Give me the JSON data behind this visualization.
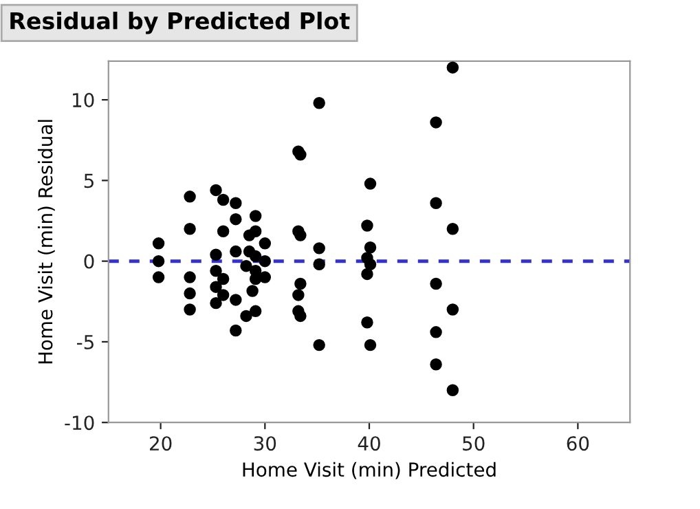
{
  "chart_data": {
    "type": "scatter",
    "title": "Residual by Predicted Plot",
    "xlabel": "Home Visit (min) Predicted",
    "ylabel": "Home Visit (min) Residual",
    "x": [
      19.8,
      19.8,
      19.8,
      22.8,
      22.8,
      22.8,
      22.8,
      22.8,
      25.3,
      26.0,
      26.0,
      25.3,
      25.3,
      26.0,
      25.3,
      26.0,
      25.3,
      27.2,
      27.2,
      27.2,
      27.2,
      27.2,
      29.1,
      29.1,
      28.5,
      30.0,
      28.5,
      29.1,
      30.0,
      28.2,
      29.1,
      30.0,
      29.1,
      28.8,
      29.1,
      28.2,
      33.2,
      33.4,
      33.2,
      33.4,
      33.4,
      33.2,
      33.2,
      33.4,
      35.2,
      35.2,
      35.2,
      35.2,
      40.1,
      39.8,
      40.1,
      39.8,
      40.1,
      39.8,
      39.8,
      40.1,
      46.4,
      46.4,
      46.4,
      46.4,
      46.4,
      48.0,
      48.0,
      48.0,
      48.0
    ],
    "series": [
      {
        "color": "#000000",
        "values": [
          1.1,
          0,
          -1.0,
          4.0,
          2.0,
          -1.0,
          -2.0,
          -3.0,
          4.4,
          3.8,
          1.85,
          0.4,
          -0.6,
          -1.1,
          -1.6,
          -2.1,
          -2.6,
          3.6,
          2.6,
          0.6,
          -2.4,
          -4.3,
          2.8,
          1.85,
          1.6,
          1.1,
          0.6,
          0.3,
          0,
          -0.3,
          -0.6,
          -1.0,
          -1.1,
          -1.85,
          -3.1,
          -3.4,
          6.8,
          6.6,
          1.85,
          1.6,
          -1.4,
          -2.1,
          -3.1,
          -3.4,
          9.8,
          0.8,
          -0.2,
          -5.2,
          4.8,
          2.2,
          0.85,
          0.2,
          -0.2,
          -0.8,
          -3.8,
          -5.2,
          8.6,
          3.6,
          -1.4,
          -4.4,
          -6.4,
          12.0,
          2.0,
          -3.0,
          -8.0
        ]
      }
    ],
    "xlim": [
      15,
      65
    ],
    "ylim": [
      -10,
      12.4
    ],
    "xticks": [
      20,
      30,
      40,
      50,
      60
    ],
    "yticks": [
      -10,
      -5,
      0,
      5,
      10
    ],
    "ref_lines": [
      {
        "axis": "y",
        "value": 0,
        "color": "#3333cc",
        "line_style": "dashed"
      }
    ],
    "marker": "circle",
    "grid": false,
    "legend": false
  }
}
